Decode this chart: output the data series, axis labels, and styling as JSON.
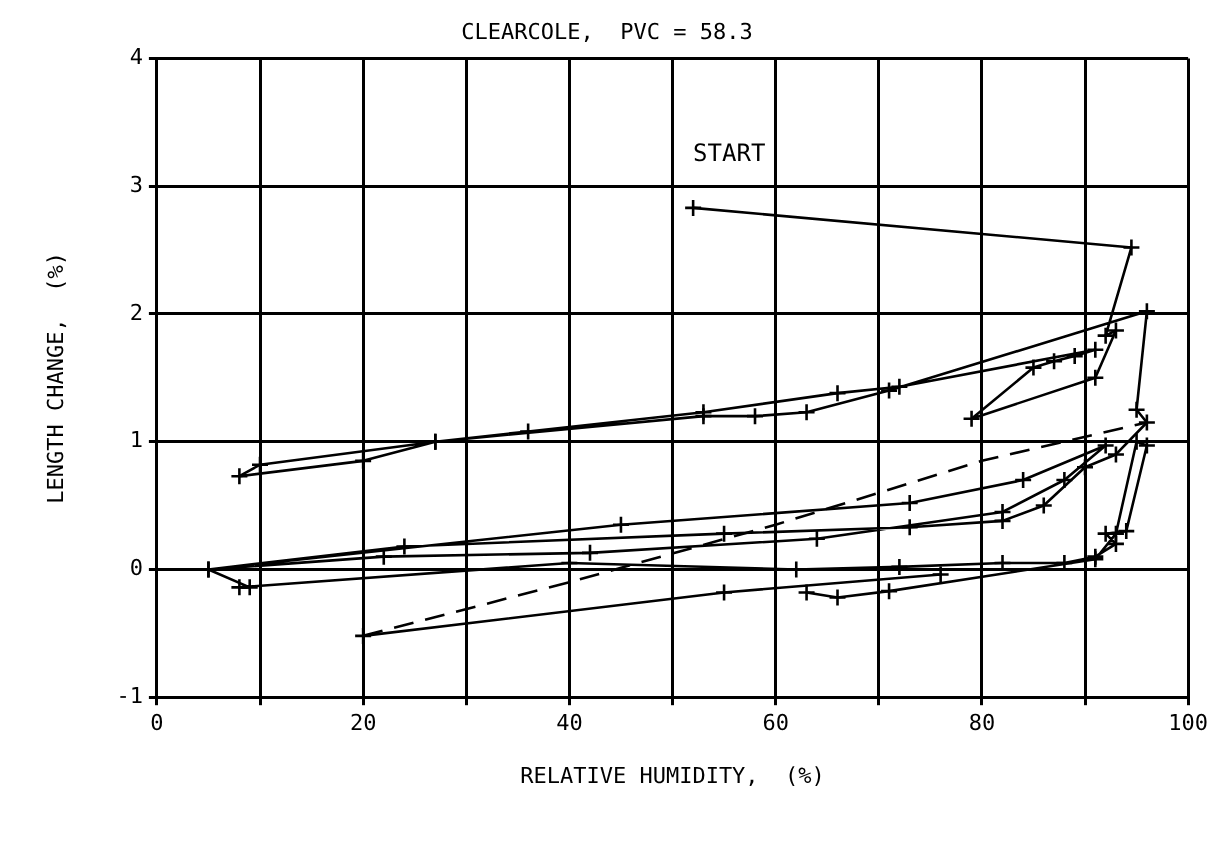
{
  "chart_data": {
    "type": "line",
    "title": "CLEARCOLE,  PVC = 58.3",
    "xlabel": "RELATIVE HUMIDITY,  (%)",
    "ylabel": "LENGTH CHANGE,  (%)",
    "xlim": [
      0,
      100
    ],
    "xticks": [
      0,
      {
        "value": 10,
        "label": null
      },
      20,
      {
        "value": 30,
        "label": null
      },
      40,
      {
        "value": 50,
        "label": null
      },
      60,
      {
        "value": 70,
        "label": null
      },
      80,
      {
        "value": 90,
        "label": null
      },
      100
    ],
    "ylim": [
      -1,
      4
    ],
    "yticks": [
      -1,
      0,
      1,
      2,
      3,
      4
    ],
    "grid": true,
    "legend": false,
    "marker": "cross",
    "annotations": [
      "START"
    ],
    "series": [
      {
        "color": "#000000",
        "line_style": "solid",
        "x": [
          52,
          94.5,
          92,
          93,
          91,
          79,
          85,
          87,
          89,
          91,
          72,
          66,
          53,
          36,
          27,
          10,
          8,
          20,
          27,
          53,
          58,
          63,
          71,
          96,
          95,
          96,
          93,
          90,
          86,
          82,
          73,
          55,
          24,
          5,
          22,
          42,
          64,
          82,
          88,
          92,
          84,
          73,
          45,
          5,
          9,
          8,
          40,
          62,
          72,
          82,
          88,
          91,
          93,
          92,
          94,
          96,
          95,
          93,
          91,
          71,
          66,
          63
        ],
        "values": [
          2.83,
          2.52,
          1.83,
          1.87,
          1.5,
          1.18,
          1.58,
          1.63,
          1.67,
          1.72,
          1.43,
          1.38,
          1.23,
          1.08,
          1.0,
          0.82,
          0.73,
          0.85,
          1.0,
          1.2,
          1.2,
          1.23,
          1.4,
          2.02,
          1.25,
          1.15,
          0.9,
          0.8,
          0.5,
          0.38,
          0.33,
          0.28,
          0.18,
          0,
          0.1,
          0.13,
          0.24,
          0.45,
          0.7,
          0.97,
          0.7,
          0.52,
          0.35,
          0,
          -0.14,
          -0.14,
          0.05,
          0.0,
          0.02,
          0.05,
          0.05,
          0.1,
          0.2,
          0.28,
          0.3,
          0.97,
          1.0,
          0.28,
          0.08,
          -0.17,
          -0.22,
          -0.18
        ]
      },
      {
        "color": "#000000",
        "line_style": "solid",
        "x": [
          76,
          55,
          20
        ],
        "values": [
          -0.04,
          -0.18,
          -0.52
        ]
      },
      {
        "color": "#000000",
        "line_style": "dashed",
        "marker": "none",
        "x": [
          20,
          40,
          60,
          80,
          96
        ],
        "values": [
          -0.52,
          -0.1,
          0.35,
          0.85,
          1.15
        ]
      }
    ]
  }
}
